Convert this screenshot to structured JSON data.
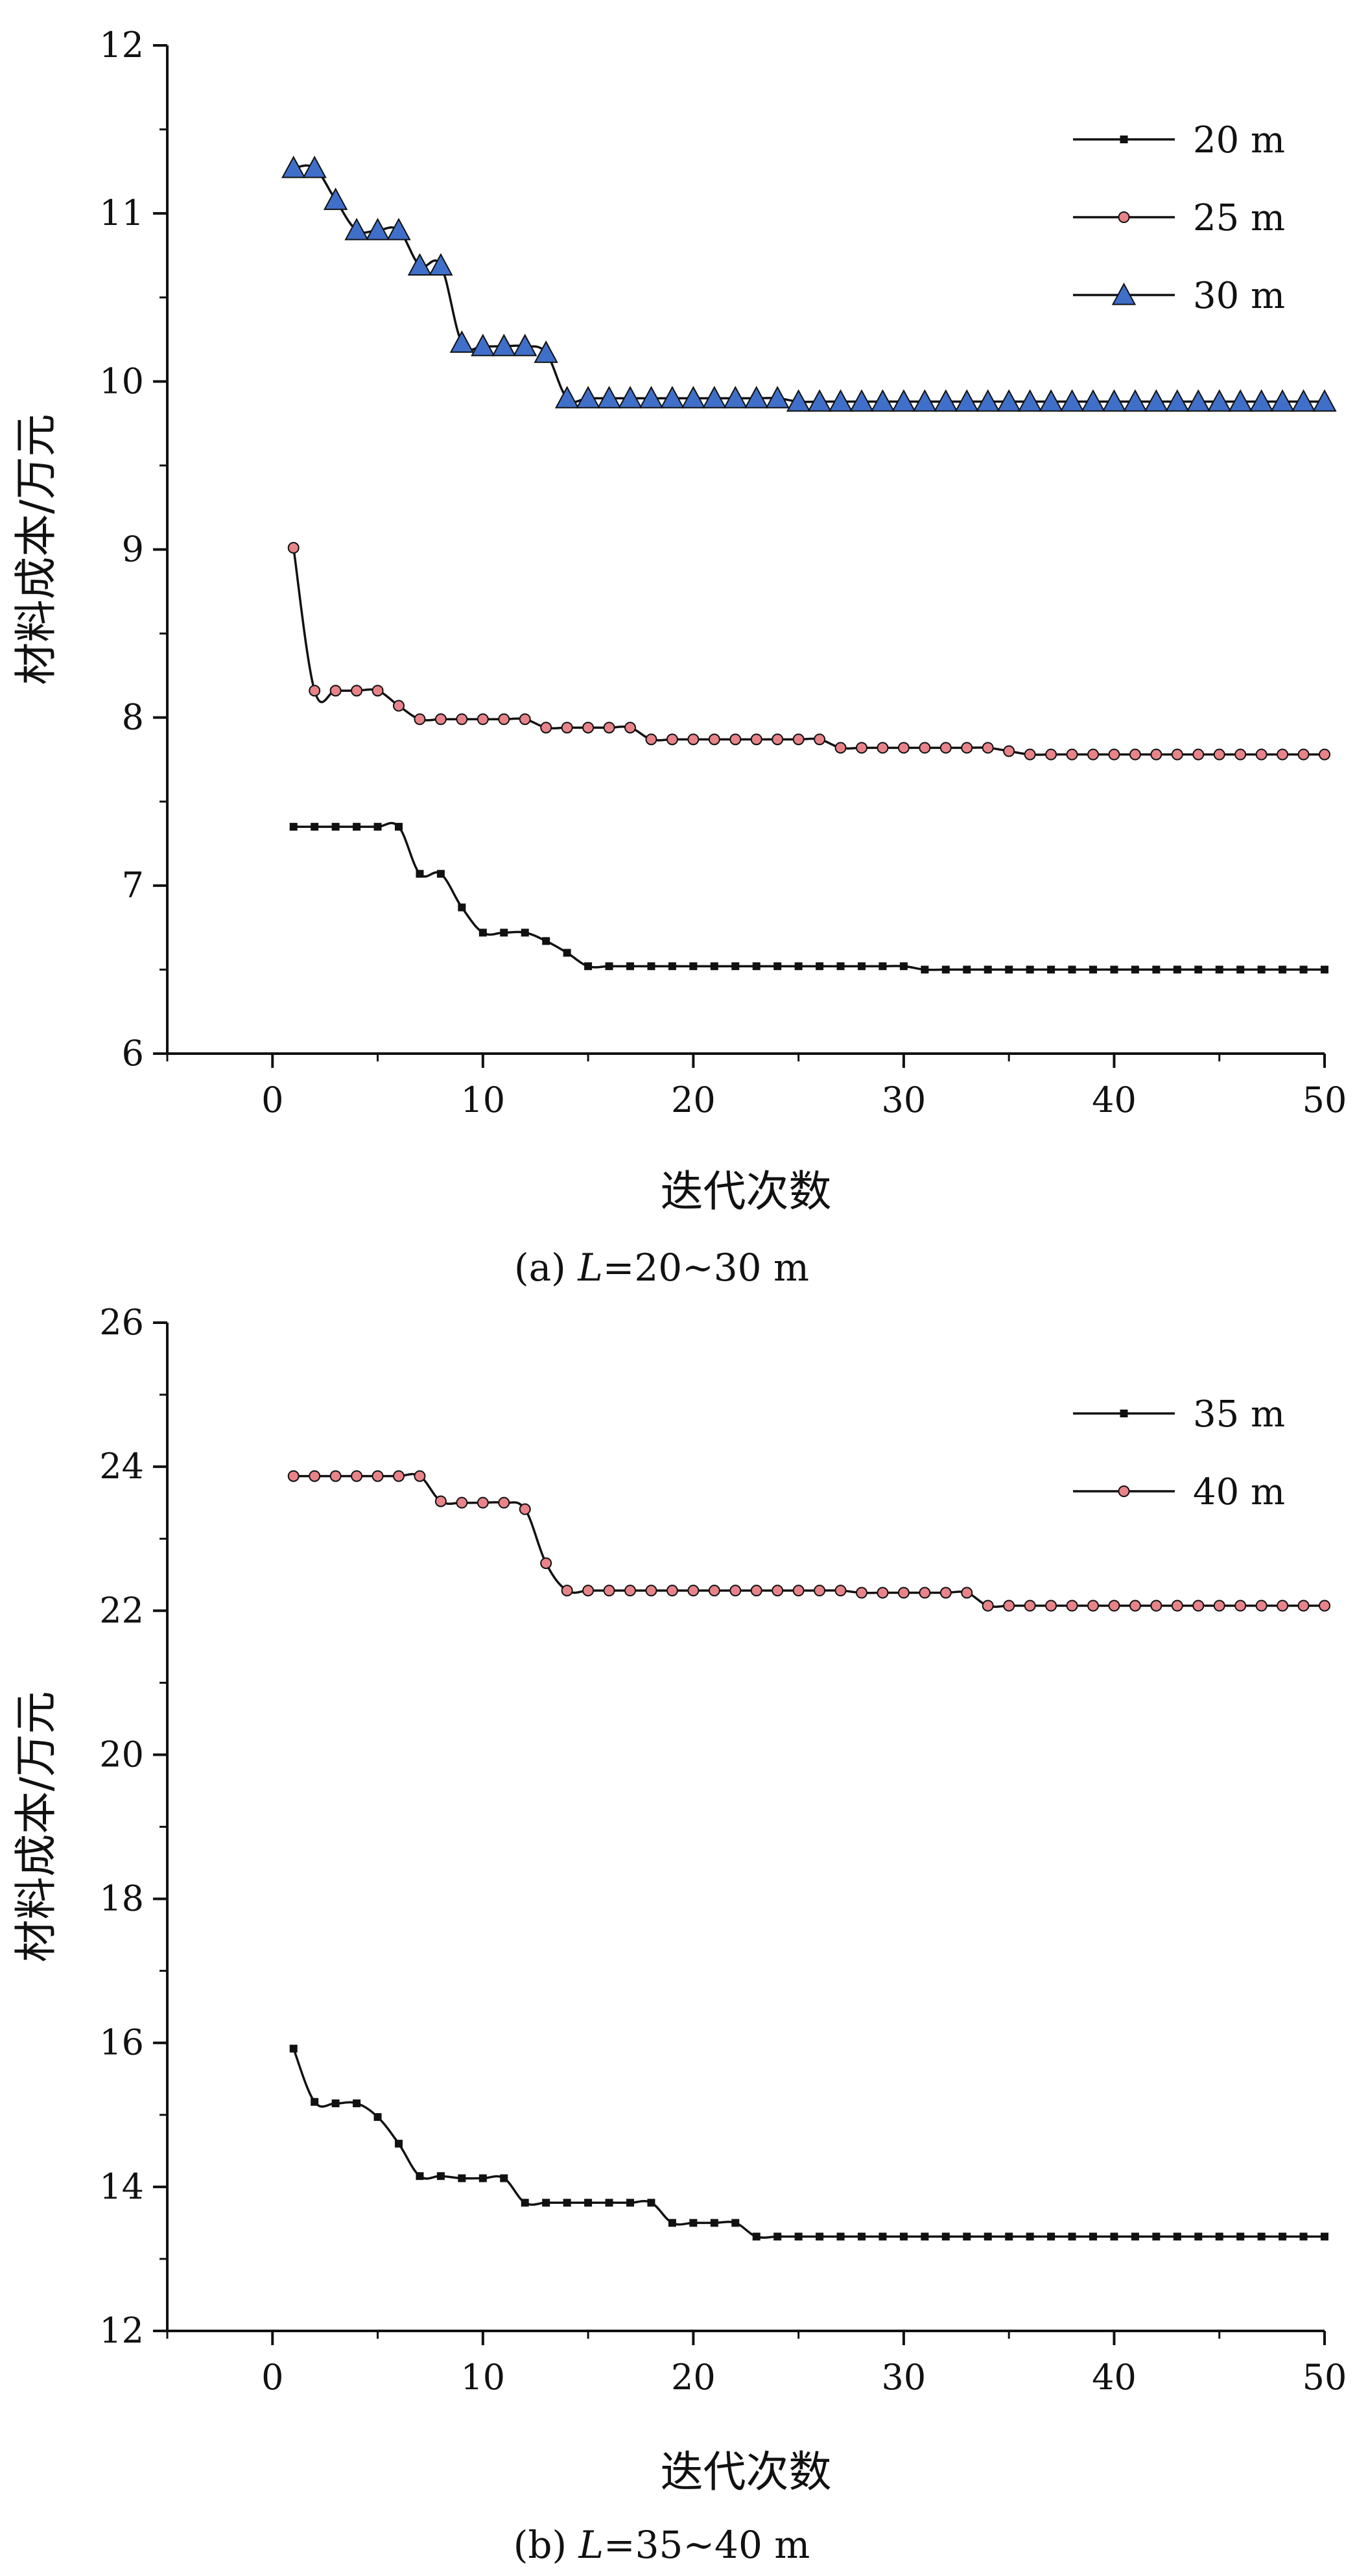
{
  "chart_data": [
    {
      "type": "line",
      "caption": "(a) L=20~30 m",
      "caption_parts": {
        "prefix": "(a) ",
        "italic": "L",
        "suffix": "=20~30 m"
      },
      "xlabel": "迭代次数",
      "ylabel": "材料成本/万元",
      "xlim": [
        -5,
        50
      ],
      "ylim": [
        6,
        12
      ],
      "xticks": [
        0,
        10,
        20,
        30,
        40,
        50
      ],
      "yticks": [
        6,
        7,
        8,
        9,
        10,
        11,
        12
      ],
      "legend_position": "top-right",
      "x": [
        1,
        2,
        3,
        4,
        5,
        6,
        7,
        8,
        9,
        10,
        11,
        12,
        13,
        14,
        15,
        16,
        17,
        18,
        19,
        20,
        21,
        22,
        23,
        24,
        25,
        26,
        27,
        28,
        29,
        30,
        31,
        32,
        33,
        34,
        35,
        36,
        37,
        38,
        39,
        40,
        41,
        42,
        43,
        44,
        45,
        46,
        47,
        48,
        49,
        50
      ],
      "series": [
        {
          "name": "20 m",
          "marker": "square",
          "color": "#111111",
          "values": [
            7.35,
            7.35,
            7.35,
            7.35,
            7.35,
            7.35,
            7.07,
            7.07,
            6.87,
            6.72,
            6.72,
            6.72,
            6.67,
            6.6,
            6.52,
            6.52,
            6.52,
            6.52,
            6.52,
            6.52,
            6.52,
            6.52,
            6.52,
            6.52,
            6.52,
            6.52,
            6.52,
            6.52,
            6.52,
            6.52,
            6.5,
            6.5,
            6.5,
            6.5,
            6.5,
            6.5,
            6.5,
            6.5,
            6.5,
            6.5,
            6.5,
            6.5,
            6.5,
            6.5,
            6.5,
            6.5,
            6.5,
            6.5,
            6.5,
            6.5
          ]
        },
        {
          "name": "25 m",
          "marker": "circle",
          "color": "#e8838a",
          "values": [
            9.01,
            8.16,
            8.16,
            8.16,
            8.16,
            8.07,
            7.99,
            7.99,
            7.99,
            7.99,
            7.99,
            7.99,
            7.94,
            7.94,
            7.94,
            7.94,
            7.94,
            7.87,
            7.87,
            7.87,
            7.87,
            7.87,
            7.87,
            7.87,
            7.87,
            7.87,
            7.82,
            7.82,
            7.82,
            7.82,
            7.82,
            7.82,
            7.82,
            7.82,
            7.8,
            7.78,
            7.78,
            7.78,
            7.78,
            7.78,
            7.78,
            7.78,
            7.78,
            7.78,
            7.78,
            7.78,
            7.78,
            7.78,
            7.78,
            7.78
          ]
        },
        {
          "name": "30 m",
          "marker": "triangle",
          "color": "#3f6fc9",
          "values": [
            11.27,
            11.27,
            11.08,
            10.9,
            10.9,
            10.9,
            10.69,
            10.69,
            10.23,
            10.21,
            10.21,
            10.21,
            10.17,
            9.9,
            9.9,
            9.9,
            9.9,
            9.9,
            9.9,
            9.9,
            9.9,
            9.9,
            9.9,
            9.9,
            9.88,
            9.88,
            9.88,
            9.88,
            9.88,
            9.88,
            9.88,
            9.88,
            9.88,
            9.88,
            9.88,
            9.88,
            9.88,
            9.88,
            9.88,
            9.88,
            9.88,
            9.88,
            9.88,
            9.88,
            9.88,
            9.88,
            9.88,
            9.88,
            9.88,
            9.88
          ]
        }
      ]
    },
    {
      "type": "line",
      "caption": "(b) L=35~40 m",
      "caption_parts": {
        "prefix": "(b) ",
        "italic": "L",
        "suffix": "=35~40 m"
      },
      "xlabel": "迭代次数",
      "ylabel": "材料成本/万元",
      "xlim": [
        -5,
        50
      ],
      "ylim": [
        12,
        26
      ],
      "xticks": [
        0,
        10,
        20,
        30,
        40,
        50
      ],
      "yticks": [
        12,
        14,
        16,
        18,
        20,
        22,
        24,
        26
      ],
      "legend_position": "top-right",
      "x": [
        1,
        2,
        3,
        4,
        5,
        6,
        7,
        8,
        9,
        10,
        11,
        12,
        13,
        14,
        15,
        16,
        17,
        18,
        19,
        20,
        21,
        22,
        23,
        24,
        25,
        26,
        27,
        28,
        29,
        30,
        31,
        32,
        33,
        34,
        35,
        36,
        37,
        38,
        39,
        40,
        41,
        42,
        43,
        44,
        45,
        46,
        47,
        48,
        49,
        50
      ],
      "series": [
        {
          "name": "35 m",
          "marker": "square",
          "color": "#111111",
          "values": [
            15.92,
            15.18,
            15.16,
            15.16,
            14.97,
            14.6,
            14.15,
            14.15,
            14.12,
            14.12,
            14.12,
            13.78,
            13.78,
            13.78,
            13.78,
            13.78,
            13.78,
            13.78,
            13.5,
            13.5,
            13.5,
            13.5,
            13.31,
            13.31,
            13.31,
            13.31,
            13.31,
            13.31,
            13.31,
            13.31,
            13.31,
            13.31,
            13.31,
            13.31,
            13.31,
            13.31,
            13.31,
            13.31,
            13.31,
            13.31,
            13.31,
            13.31,
            13.31,
            13.31,
            13.31,
            13.31,
            13.31,
            13.31,
            13.31,
            13.31
          ]
        },
        {
          "name": "40 m",
          "marker": "circle",
          "color": "#e8838a",
          "values": [
            23.87,
            23.87,
            23.87,
            23.87,
            23.87,
            23.87,
            23.87,
            23.52,
            23.5,
            23.5,
            23.5,
            23.41,
            22.66,
            22.28,
            22.28,
            22.28,
            22.28,
            22.28,
            22.28,
            22.28,
            22.28,
            22.28,
            22.28,
            22.28,
            22.28,
            22.28,
            22.28,
            22.25,
            22.25,
            22.25,
            22.25,
            22.25,
            22.25,
            22.07,
            22.07,
            22.07,
            22.07,
            22.07,
            22.07,
            22.07,
            22.07,
            22.07,
            22.07,
            22.07,
            22.07,
            22.07,
            22.07,
            22.07,
            22.07,
            22.07
          ]
        }
      ]
    }
  ]
}
